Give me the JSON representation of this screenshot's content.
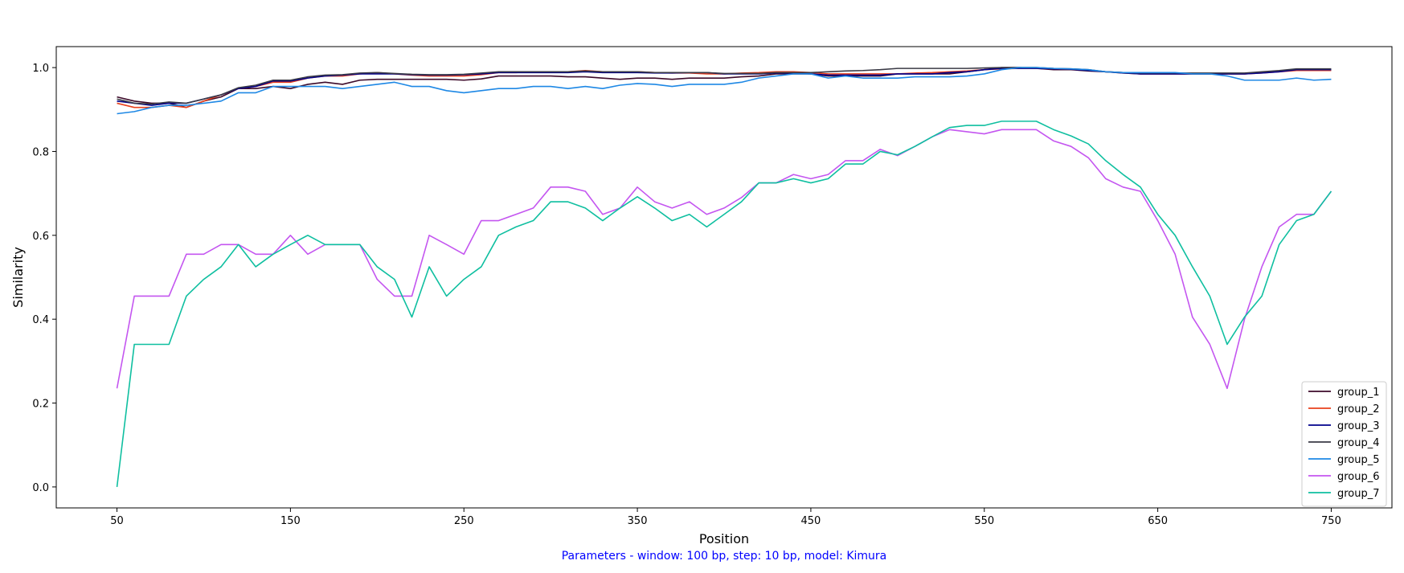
{
  "chart_data": {
    "type": "line",
    "title": "",
    "xlabel": "Position",
    "ylabel": "Similarity",
    "caption": "Parameters - window: 100 bp, step: 10 bp, model: Kimura",
    "caption_color": "#0000ff",
    "xlim": [
      15,
      785
    ],
    "ylim": [
      -0.05,
      1.05
    ],
    "xticks": [
      50,
      150,
      250,
      350,
      450,
      550,
      650,
      750
    ],
    "yticks": [
      0.0,
      0.2,
      0.4,
      0.6,
      0.8,
      1.0
    ],
    "ytick_labels": [
      "0.0",
      "0.2",
      "0.4",
      "0.6",
      "0.8",
      "1.0"
    ],
    "legend_position": "lower-right",
    "grid": false,
    "x": [
      50,
      60,
      70,
      80,
      90,
      100,
      110,
      120,
      130,
      140,
      150,
      160,
      170,
      180,
      190,
      200,
      210,
      220,
      230,
      240,
      250,
      260,
      270,
      280,
      290,
      300,
      310,
      320,
      330,
      340,
      350,
      360,
      370,
      380,
      390,
      400,
      410,
      420,
      430,
      440,
      450,
      460,
      470,
      480,
      490,
      500,
      510,
      520,
      530,
      540,
      550,
      560,
      570,
      580,
      590,
      600,
      610,
      620,
      630,
      640,
      650,
      660,
      670,
      680,
      690,
      700,
      710,
      720,
      730,
      740,
      750
    ],
    "series": [
      {
        "name": "group_1",
        "color": "#3d0a2a",
        "values": [
          0.93,
          0.92,
          0.915,
          0.915,
          0.905,
          0.92,
          0.93,
          0.95,
          0.95,
          0.955,
          0.95,
          0.96,
          0.965,
          0.96,
          0.97,
          0.972,
          0.972,
          0.972,
          0.972,
          0.972,
          0.97,
          0.973,
          0.98,
          0.98,
          0.98,
          0.98,
          0.978,
          0.978,
          0.975,
          0.972,
          0.975,
          0.975,
          0.972,
          0.975,
          0.975,
          0.975,
          0.978,
          0.98,
          0.985,
          0.985,
          0.985,
          0.98,
          0.98,
          0.98,
          0.98,
          0.985,
          0.985,
          0.985,
          0.985,
          0.99,
          0.995,
          1.0,
          1.0,
          0.998,
          0.995,
          0.995,
          0.992,
          0.99,
          0.988,
          0.985,
          0.985,
          0.985,
          0.985,
          0.985,
          0.985,
          0.985,
          0.988,
          0.992,
          0.995,
          0.995,
          0.995
        ]
      },
      {
        "name": "group_2",
        "color": "#e8401c",
        "values": [
          0.915,
          0.905,
          0.905,
          0.91,
          0.905,
          0.92,
          0.935,
          0.95,
          0.955,
          0.965,
          0.965,
          0.975,
          0.98,
          0.98,
          0.985,
          0.988,
          0.985,
          0.982,
          0.98,
          0.98,
          0.98,
          0.983,
          0.988,
          0.988,
          0.99,
          0.99,
          0.99,
          0.993,
          0.99,
          0.99,
          0.99,
          0.988,
          0.987,
          0.987,
          0.985,
          0.985,
          0.987,
          0.988,
          0.99,
          0.99,
          0.988,
          0.985,
          0.985,
          0.985,
          0.985,
          0.985,
          0.987,
          0.988,
          0.99,
          0.992,
          0.995,
          0.997,
          0.998,
          0.998,
          0.997,
          0.996,
          0.994,
          0.99,
          0.987,
          0.985,
          0.985,
          0.985,
          0.985,
          0.985,
          0.985,
          0.985,
          0.987,
          0.99,
          0.993,
          0.993,
          0.993
        ]
      },
      {
        "name": "group_3",
        "color": "#00008b",
        "values": [
          0.92,
          0.915,
          0.91,
          0.915,
          0.915,
          0.925,
          0.935,
          0.95,
          0.955,
          0.968,
          0.968,
          0.975,
          0.98,
          0.982,
          0.985,
          0.985,
          0.985,
          0.983,
          0.982,
          0.982,
          0.983,
          0.985,
          0.988,
          0.988,
          0.988,
          0.988,
          0.988,
          0.99,
          0.988,
          0.988,
          0.988,
          0.987,
          0.987,
          0.988,
          0.988,
          0.985,
          0.985,
          0.985,
          0.987,
          0.987,
          0.985,
          0.982,
          0.982,
          0.982,
          0.982,
          0.985,
          0.985,
          0.985,
          0.988,
          0.99,
          0.995,
          0.998,
          0.998,
          0.998,
          0.997,
          0.996,
          0.993,
          0.99,
          0.987,
          0.985,
          0.985,
          0.985,
          0.985,
          0.985,
          0.985,
          0.985,
          0.987,
          0.99,
          0.995,
          0.995,
          0.995
        ]
      },
      {
        "name": "group_4",
        "color": "#3a3a46",
        "values": [
          0.925,
          0.915,
          0.913,
          0.918,
          0.915,
          0.925,
          0.935,
          0.952,
          0.958,
          0.97,
          0.97,
          0.978,
          0.982,
          0.983,
          0.987,
          0.988,
          0.986,
          0.984,
          0.983,
          0.983,
          0.984,
          0.987,
          0.99,
          0.99,
          0.99,
          0.99,
          0.99,
          0.992,
          0.99,
          0.99,
          0.99,
          0.988,
          0.988,
          0.988,
          0.988,
          0.986,
          0.986,
          0.986,
          0.988,
          0.988,
          0.988,
          0.99,
          0.992,
          0.993,
          0.995,
          0.998,
          0.998,
          0.998,
          0.998,
          0.998,
          0.999,
          1.0,
          1.0,
          1.0,
          0.998,
          0.997,
          0.995,
          0.99,
          0.988,
          0.987,
          0.987,
          0.987,
          0.987,
          0.987,
          0.987,
          0.987,
          0.99,
          0.993,
          0.997,
          0.997,
          0.997
        ]
      },
      {
        "name": "group_5",
        "color": "#1e88e5",
        "values": [
          0.89,
          0.895,
          0.905,
          0.91,
          0.91,
          0.915,
          0.92,
          0.94,
          0.94,
          0.955,
          0.955,
          0.955,
          0.955,
          0.95,
          0.955,
          0.96,
          0.965,
          0.955,
          0.955,
          0.945,
          0.94,
          0.945,
          0.95,
          0.95,
          0.955,
          0.955,
          0.95,
          0.955,
          0.95,
          0.958,
          0.962,
          0.96,
          0.955,
          0.96,
          0.96,
          0.96,
          0.965,
          0.975,
          0.98,
          0.985,
          0.985,
          0.975,
          0.98,
          0.975,
          0.975,
          0.975,
          0.978,
          0.978,
          0.978,
          0.98,
          0.985,
          0.995,
          1.0,
          1.0,
          0.998,
          0.997,
          0.995,
          0.99,
          0.988,
          0.988,
          0.988,
          0.988,
          0.985,
          0.985,
          0.98,
          0.97,
          0.97,
          0.97,
          0.975,
          0.97,
          0.972
        ]
      },
      {
        "name": "group_6",
        "color": "#c456f0",
        "values": [
          0.235,
          0.455,
          0.455,
          0.455,
          0.555,
          0.555,
          0.578,
          0.578,
          0.555,
          0.555,
          0.6,
          0.555,
          0.578,
          0.578,
          0.578,
          0.495,
          0.455,
          0.455,
          0.6,
          0.578,
          0.555,
          0.635,
          0.635,
          0.65,
          0.665,
          0.715,
          0.715,
          0.705,
          0.65,
          0.665,
          0.715,
          0.68,
          0.665,
          0.68,
          0.65,
          0.665,
          0.69,
          0.725,
          0.725,
          0.745,
          0.735,
          0.745,
          0.778,
          0.778,
          0.805,
          0.79,
          0.812,
          0.835,
          0.852,
          0.847,
          0.842,
          0.852,
          0.852,
          0.852,
          0.825,
          0.812,
          0.785,
          0.735,
          0.715,
          0.705,
          0.635,
          0.555,
          0.405,
          0.34,
          0.235,
          0.4,
          0.525,
          0.62,
          0.65,
          0.65,
          0.705
        ]
      },
      {
        "name": "group_7",
        "color": "#0fbfa0",
        "values": [
          0.0,
          0.34,
          0.34,
          0.34,
          0.455,
          0.495,
          0.525,
          0.578,
          0.525,
          0.555,
          0.578,
          0.6,
          0.578,
          0.578,
          0.578,
          0.525,
          0.495,
          0.405,
          0.525,
          0.455,
          0.495,
          0.525,
          0.6,
          0.62,
          0.635,
          0.68,
          0.68,
          0.665,
          0.635,
          0.665,
          0.692,
          0.665,
          0.635,
          0.65,
          0.62,
          0.65,
          0.68,
          0.725,
          0.725,
          0.735,
          0.725,
          0.735,
          0.77,
          0.77,
          0.8,
          0.792,
          0.812,
          0.835,
          0.857,
          0.862,
          0.862,
          0.872,
          0.872,
          0.872,
          0.852,
          0.837,
          0.818,
          0.778,
          0.745,
          0.715,
          0.65,
          0.6,
          0.525,
          0.455,
          0.34,
          0.405,
          0.455,
          0.578,
          0.635,
          0.65,
          0.705
        ]
      }
    ]
  }
}
